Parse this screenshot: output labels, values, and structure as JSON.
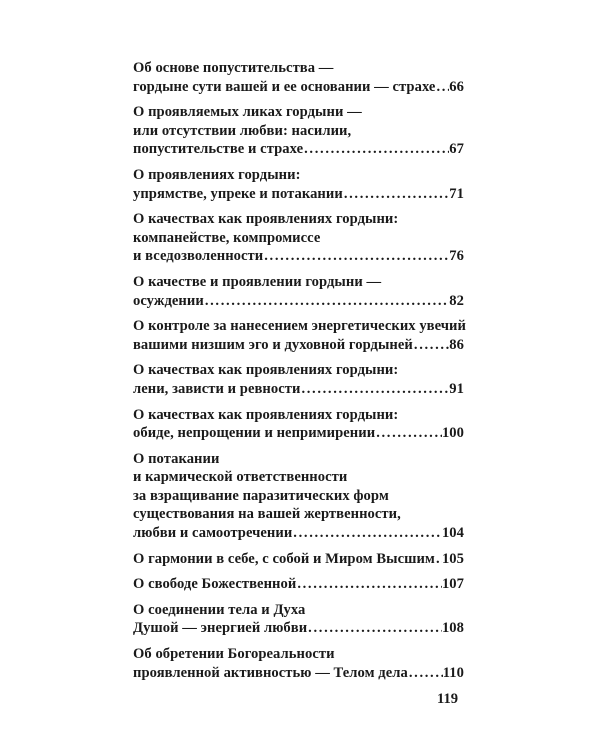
{
  "toc": [
    {
      "lines": [
        "Об основе попустительства —",
        "гордыне сути вашей и ее основании — страхе"
      ],
      "page": "66"
    },
    {
      "lines": [
        "О проявляемых ликах гордыни —",
        "или отсутствии любви: насилии,",
        "попустительстве и страхе"
      ],
      "page": "67"
    },
    {
      "lines": [
        "О проявлениях гордыни:",
        "упрямстве, упреке и потакании"
      ],
      "page": "71"
    },
    {
      "lines": [
        "О качествах как проявлениях гордыни:",
        "компанействе, компромиссе",
        "и вседозволенности"
      ],
      "page": "76"
    },
    {
      "lines": [
        "О качестве и проявлении гордыни —",
        "осуждении"
      ],
      "page": "82"
    },
    {
      "lines": [
        "О контроле за нанесением энергетических увечий",
        "вашими низшим эго и духовной гордыней"
      ],
      "page": "86"
    },
    {
      "lines": [
        "О качествах как проявлениях гордыни:",
        "лени, зависти и ревности"
      ],
      "page": "91"
    },
    {
      "lines": [
        "О качествах как проявлениях гордыни:",
        "обиде, непрощении и непримирении"
      ],
      "page": "100"
    },
    {
      "lines": [
        "О потакании",
        "и кармической ответственности",
        "за взращивание паразитических форм",
        "существования на вашей жертвенности,",
        "любви и самоотречении"
      ],
      "page": "104"
    },
    {
      "lines": [
        "О гармонии в себе, с собой и Миром Высшим"
      ],
      "page": "105"
    },
    {
      "lines": [
        "О свободе Божественной"
      ],
      "page": "107"
    },
    {
      "lines": [
        "О соединении тела и Духа",
        "Душой — энергией любви"
      ],
      "page": "108"
    },
    {
      "lines": [
        "Об обретении Богореальности",
        "проявленной активностью — Телом дела"
      ],
      "page": "110"
    }
  ],
  "page_number": "119"
}
